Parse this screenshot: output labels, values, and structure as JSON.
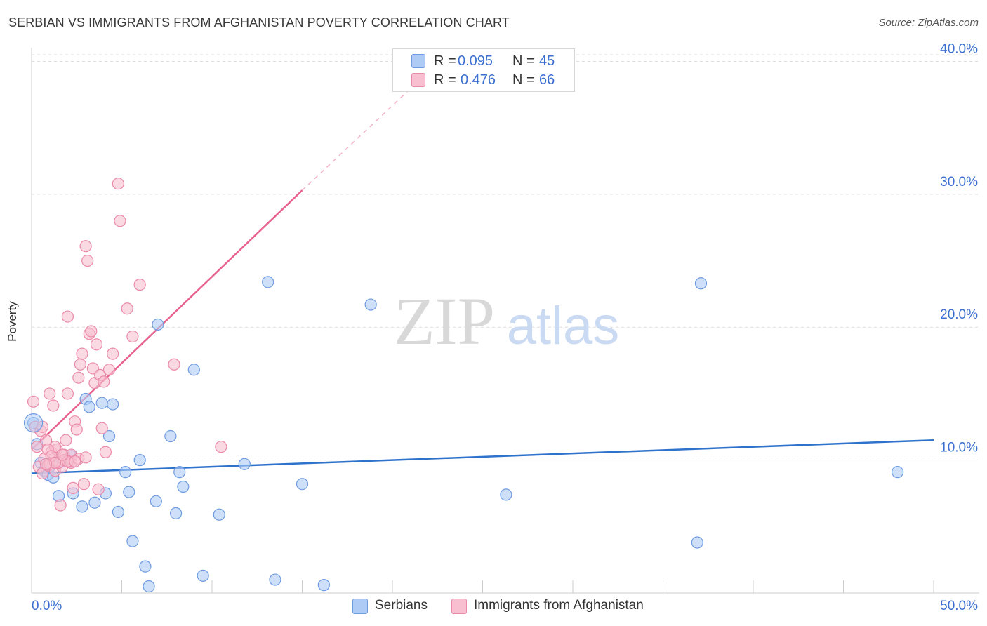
{
  "title": "SERBIAN VS IMMIGRANTS FROM AFGHANISTAN POVERTY CORRELATION CHART",
  "source": "Source: ZipAtlas.com",
  "watermark": {
    "zip": "ZIP",
    "atlas": "atlas"
  },
  "stats": {
    "serbians": {
      "r_key": "R =",
      "r_val": "0.095",
      "n_key": "N =",
      "n_val": "45"
    },
    "afghan": {
      "r_key": "R =",
      "r_val": "0.476",
      "n_key": "N =",
      "n_val": "66"
    }
  },
  "legend": {
    "serbians": "Serbians",
    "afghan": "Immigrants from Afghanistan"
  },
  "colors": {
    "blue_fill": "#aecbf5",
    "blue_stroke": "#6e9be0",
    "blue_line": "#2f72cc",
    "pink_fill": "#f7bfd0",
    "pink_stroke": "#ea8aa9",
    "pink_line": "#e8628f",
    "grid": "#dddddd",
    "axis_text": "#3b6fd0"
  },
  "chart_data": {
    "type": "scatter",
    "title": "SERBIAN VS IMMIGRANTS FROM AFGHANISTAN POVERTY CORRELATION CHART",
    "xlabel": "",
    "ylabel": "Poverty",
    "xlim": [
      0,
      50
    ],
    "ylim": [
      0,
      40.5
    ],
    "x_tick_labels": [
      "0.0%",
      "50.0%"
    ],
    "y_ticks": [
      10,
      20,
      30,
      40
    ],
    "y_tick_labels": [
      "10.0%",
      "20.0%",
      "30.0%",
      "40.0%"
    ],
    "series": [
      {
        "name": "Serbians",
        "r": 0.095,
        "n": 45,
        "trend": {
          "x0": 0,
          "y0": 9.0,
          "x1": 50,
          "y1": 11.5
        },
        "points": [
          [
            0.1,
            12.8
          ],
          [
            0.3,
            11.2
          ],
          [
            0.5,
            9.8
          ],
          [
            0.7,
            9.2
          ],
          [
            0.9,
            8.9
          ],
          [
            1.0,
            9.5
          ],
          [
            1.2,
            8.7
          ],
          [
            1.5,
            7.3
          ],
          [
            1.7,
            9.9
          ],
          [
            2.3,
            7.5
          ],
          [
            2.8,
            6.5
          ],
          [
            3.0,
            14.6
          ],
          [
            3.2,
            14.0
          ],
          [
            3.5,
            6.8
          ],
          [
            3.9,
            14.3
          ],
          [
            4.1,
            7.5
          ],
          [
            4.3,
            11.8
          ],
          [
            4.5,
            14.2
          ],
          [
            4.8,
            6.1
          ],
          [
            5.2,
            9.1
          ],
          [
            5.4,
            7.6
          ],
          [
            5.6,
            3.9
          ],
          [
            6.0,
            10.0
          ],
          [
            6.3,
            2.0
          ],
          [
            6.5,
            0.5
          ],
          [
            6.9,
            6.9
          ],
          [
            7.0,
            20.2
          ],
          [
            7.7,
            11.8
          ],
          [
            8.0,
            6.0
          ],
          [
            8.2,
            9.1
          ],
          [
            8.4,
            8.0
          ],
          [
            9.0,
            16.8
          ],
          [
            9.5,
            1.3
          ],
          [
            10.4,
            5.9
          ],
          [
            11.8,
            9.7
          ],
          [
            13.1,
            23.4
          ],
          [
            13.5,
            1.0
          ],
          [
            15.0,
            8.2
          ],
          [
            16.2,
            0.6
          ],
          [
            18.8,
            21.7
          ],
          [
            26.3,
            7.4
          ],
          [
            36.9,
            3.8
          ],
          [
            37.1,
            23.3
          ],
          [
            48.0,
            9.1
          ],
          [
            2.2,
            10.3
          ]
        ]
      },
      {
        "name": "Immigrants from Afghanistan",
        "r": 0.476,
        "n": 66,
        "trend": {
          "x0": 0,
          "y0": 10.8,
          "x1": 15,
          "y1": 30.3,
          "dash_x1": 23,
          "dash_y1": 40.5
        },
        "points": [
          [
            0.1,
            14.4
          ],
          [
            0.2,
            12.5
          ],
          [
            0.3,
            11.0
          ],
          [
            0.4,
            9.5
          ],
          [
            0.5,
            12.2
          ],
          [
            0.6,
            9.0
          ],
          [
            0.7,
            10.1
          ],
          [
            0.8,
            11.5
          ],
          [
            0.9,
            9.6
          ],
          [
            1.0,
            15.0
          ],
          [
            1.1,
            10.6
          ],
          [
            1.2,
            14.1
          ],
          [
            1.3,
            9.2
          ],
          [
            1.4,
            10.8
          ],
          [
            1.5,
            10.0
          ],
          [
            1.6,
            6.6
          ],
          [
            1.7,
            9.5
          ],
          [
            1.8,
            10.4
          ],
          [
            1.9,
            11.5
          ],
          [
            2.0,
            15.0
          ],
          [
            2.0,
            20.8
          ],
          [
            2.1,
            9.9
          ],
          [
            2.2,
            10.4
          ],
          [
            2.3,
            7.9
          ],
          [
            2.4,
            12.9
          ],
          [
            2.5,
            12.3
          ],
          [
            2.6,
            16.2
          ],
          [
            2.7,
            17.2
          ],
          [
            2.8,
            18.0
          ],
          [
            2.9,
            8.2
          ],
          [
            3.0,
            26.1
          ],
          [
            3.1,
            25.0
          ],
          [
            3.2,
            19.5
          ],
          [
            3.3,
            19.7
          ],
          [
            3.4,
            16.9
          ],
          [
            3.5,
            15.8
          ],
          [
            3.6,
            18.7
          ],
          [
            3.7,
            7.8
          ],
          [
            3.8,
            16.4
          ],
          [
            3.9,
            12.4
          ],
          [
            4.0,
            15.9
          ],
          [
            4.1,
            10.6
          ],
          [
            4.3,
            16.8
          ],
          [
            4.5,
            18.0
          ],
          [
            4.8,
            30.8
          ],
          [
            4.9,
            28.0
          ],
          [
            5.3,
            21.4
          ],
          [
            5.6,
            19.3
          ],
          [
            6.0,
            23.2
          ],
          [
            7.9,
            17.2
          ],
          [
            10.5,
            11.0
          ],
          [
            1.0,
            9.7
          ],
          [
            1.3,
            11.0
          ],
          [
            1.8,
            10.0
          ],
          [
            2.2,
            9.8
          ],
          [
            0.6,
            12.5
          ],
          [
            0.9,
            10.8
          ],
          [
            1.5,
            9.8
          ],
          [
            1.1,
            10.3
          ],
          [
            2.6,
            10.1
          ],
          [
            3.0,
            10.2
          ],
          [
            2.0,
            9.9
          ],
          [
            1.3,
            9.8
          ],
          [
            0.8,
            9.7
          ],
          [
            1.7,
            10.4
          ],
          [
            2.4,
            9.9
          ]
        ]
      }
    ]
  }
}
